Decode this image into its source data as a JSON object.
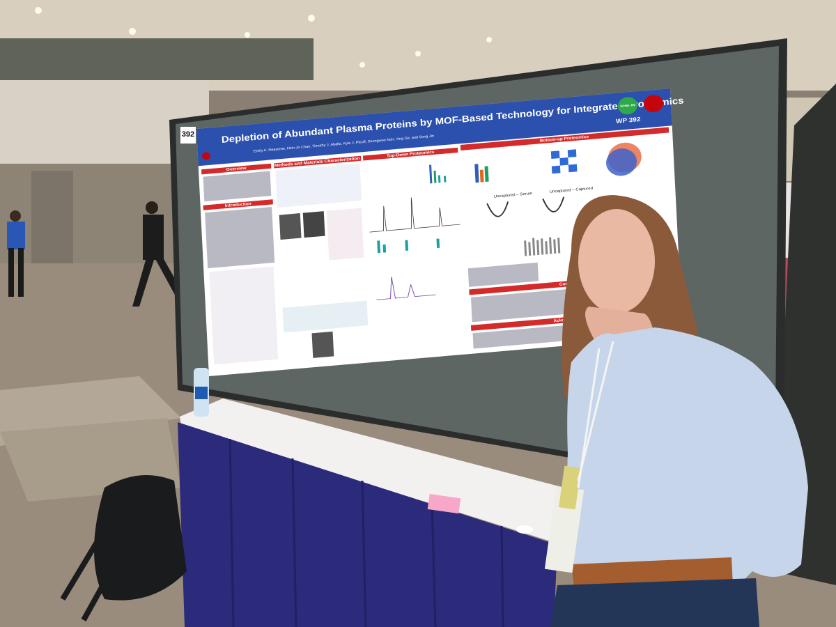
{
  "board_number": "392",
  "poster": {
    "title": "Depletion of Abundant Plasma Proteins by MOF-Based Technology for Integrated Proteomics",
    "code": "WP 392",
    "authors": "Emily A. Reasoner, Hsin-Jo Chan, Timothy J. Aballo, Kyle J. Plouff, Seungwoo Noh, Ying Ge, and Song Jin",
    "logo": "SONG JIN",
    "sections": [
      "Overview",
      "Introduction",
      "Methods and Materials Characterization",
      "Top-Down Proteomics",
      "Bottom-up Proteomics",
      "Conclusion",
      "Acknowledgement"
    ],
    "panel_labels": [
      "Uncaptured – Serum",
      "Uncaptured – Captured"
    ]
  }
}
